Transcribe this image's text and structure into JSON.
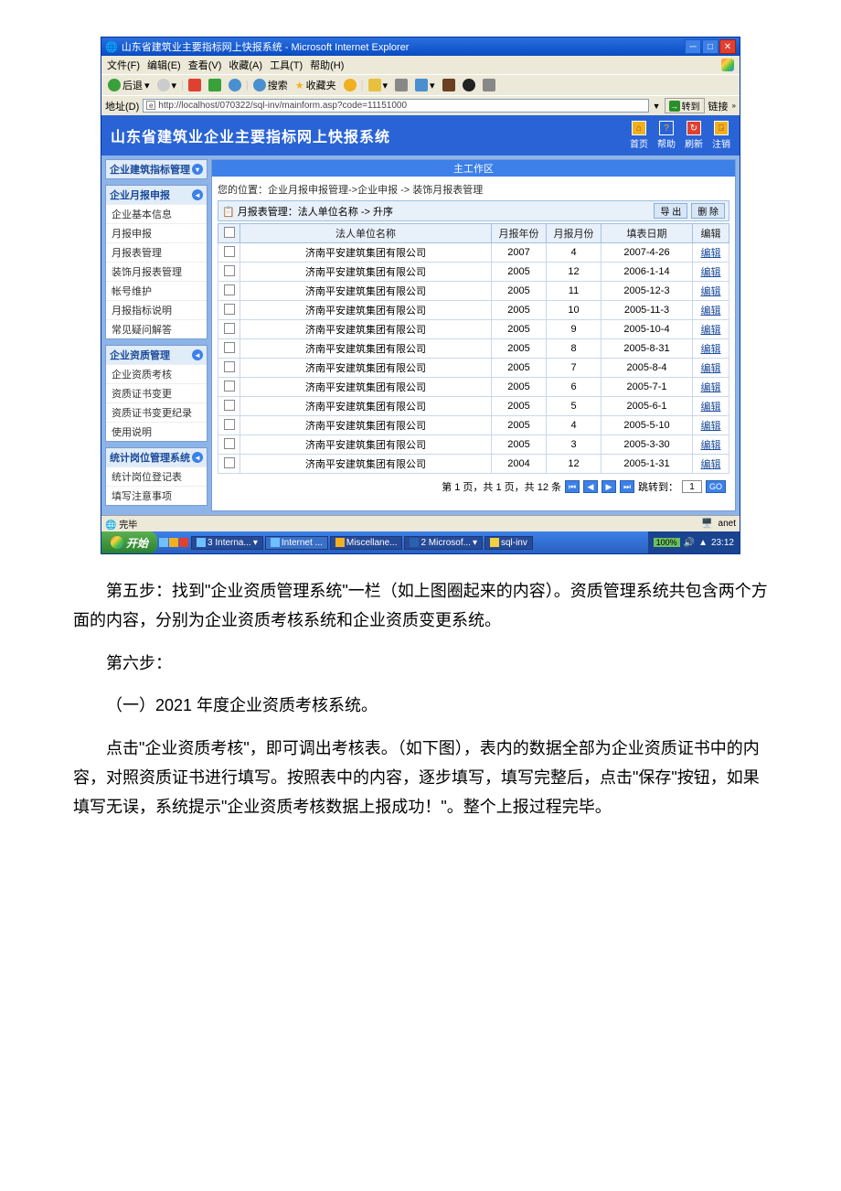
{
  "window": {
    "title": "山东省建筑业主要指标网上快报系统 - Microsoft Internet Explorer",
    "menu": [
      "文件(F)",
      "编辑(E)",
      "查看(V)",
      "收藏(A)",
      "工具(T)",
      "帮助(H)"
    ],
    "toolbar": {
      "back": "后退",
      "search": "搜索",
      "fav": "收藏夹"
    },
    "addr_label": "地址(D)",
    "url": "http://localhost/070322/sql-inv/mainform.asp?code=11151000",
    "go": "转到",
    "links": "链接"
  },
  "header": {
    "app_title": "山东省建筑业企业主要指标网上快报系统",
    "icons": [
      "首页",
      "帮助",
      "刷新",
      "注销"
    ]
  },
  "sidebar": {
    "groups": [
      {
        "title": "企业建筑指标管理"
      },
      {
        "title": "企业月报申报",
        "items": [
          "企业基本信息",
          "月报申报",
          "月报表管理",
          "装饰月报表管理",
          "帐号维护",
          "月报指标说明",
          "常见疑问解答"
        ]
      },
      {
        "title": "企业资质管理",
        "items": [
          "企业资质考核",
          "资质证书变更",
          "资质证书变更纪录",
          "使用说明"
        ]
      },
      {
        "title": "统计岗位管理系统",
        "items": [
          "统计岗位登记表",
          "填写注意事项"
        ]
      }
    ]
  },
  "main": {
    "work_area": "主工作区",
    "breadcrumb": "您的位置：企业月报申报管理->企业申报 -> 装饰月报表管理",
    "sort_label": "月报表管理：法人单位名称 -> 升序",
    "export_btn": "导 出",
    "delete_btn": "删 除",
    "columns": [
      "",
      "法人单位名称",
      "月报年份",
      "月报月份",
      "填表日期",
      "编辑"
    ],
    "rows": [
      {
        "name": "济南平安建筑集团有限公司",
        "year": "2007",
        "month": "4",
        "date": "2007-4-26",
        "edit": "编辑"
      },
      {
        "name": "济南平安建筑集团有限公司",
        "year": "2005",
        "month": "12",
        "date": "2006-1-14",
        "edit": "编辑"
      },
      {
        "name": "济南平安建筑集团有限公司",
        "year": "2005",
        "month": "11",
        "date": "2005-12-3",
        "edit": "编辑"
      },
      {
        "name": "济南平安建筑集团有限公司",
        "year": "2005",
        "month": "10",
        "date": "2005-11-3",
        "edit": "编辑"
      },
      {
        "name": "济南平安建筑集团有限公司",
        "year": "2005",
        "month": "9",
        "date": "2005-10-4",
        "edit": "编辑"
      },
      {
        "name": "济南平安建筑集团有限公司",
        "year": "2005",
        "month": "8",
        "date": "2005-8-31",
        "edit": "编辑"
      },
      {
        "name": "济南平安建筑集团有限公司",
        "year": "2005",
        "month": "7",
        "date": "2005-8-4",
        "edit": "编辑"
      },
      {
        "name": "济南平安建筑集团有限公司",
        "year": "2005",
        "month": "6",
        "date": "2005-7-1",
        "edit": "编辑"
      },
      {
        "name": "济南平安建筑集团有限公司",
        "year": "2005",
        "month": "5",
        "date": "2005-6-1",
        "edit": "编辑"
      },
      {
        "name": "济南平安建筑集团有限公司",
        "year": "2005",
        "month": "4",
        "date": "2005-5-10",
        "edit": "编辑"
      },
      {
        "name": "济南平安建筑集团有限公司",
        "year": "2005",
        "month": "3",
        "date": "2005-3-30",
        "edit": "编辑"
      },
      {
        "name": "济南平安建筑集团有限公司",
        "year": "2004",
        "month": "12",
        "date": "2005-1-31",
        "edit": "编辑"
      }
    ],
    "pager_text": "第 1 页，共 1 页，共 12 条",
    "pager_jump": "跳转到：",
    "pager_go": "GO",
    "pager_value": "1"
  },
  "status": {
    "done": "完毕",
    "zone": "anet"
  },
  "taskbar": {
    "start": "开始",
    "tabs": [
      "3 Interna...",
      "Internet ...",
      "Miscellane...",
      "2 Microsof...",
      "sql-inv"
    ],
    "battery": "100%",
    "time": "23:12"
  },
  "body": {
    "p1": "第五步：找到\"企业资质管理系统\"一栏（如上图圈起来的内容）。资质管理系统共包含两个方面的内容，分别为企业资质考核系统和企业资质变更系统。",
    "p2": "第六步：",
    "p3": "（一）2021 年度企业资质考核系统。",
    "p4": "点击\"企业资质考核\"，即可调出考核表。（如下图），表内的数据全部为企业资质证书中的内容，对照资质证书进行填写。按照表中的内容，逐步填写，填写完整后，点击\"保存\"按钮，如果填写无误，系统提示\"企业资质考核数据上报成功！\"。整个上报过程完毕。"
  }
}
